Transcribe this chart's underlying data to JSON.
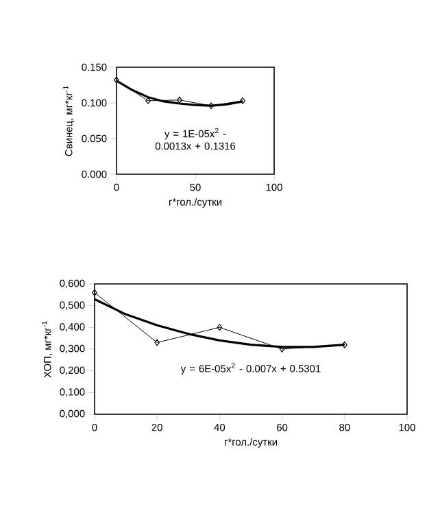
{
  "chart_data": [
    {
      "type": "line",
      "ylabel": "Свинец, мг*кг$^{-1}$",
      "xlabel": "г*гол./сутки",
      "xlim": [
        0,
        100
      ],
      "xticks": [
        0,
        50,
        100
      ],
      "ylim": [
        0,
        0.15
      ],
      "yticks": [
        {
          "value": 0,
          "label": "0.000"
        },
        {
          "value": 0.05,
          "label": "0.050"
        },
        {
          "value": 0.1,
          "label": "0.100"
        },
        {
          "value": 0.15,
          "label": "0.150"
        }
      ],
      "marker": "diamond",
      "grid": false,
      "series": [
        {
          "color": "#000000",
          "x": [
            0,
            20,
            40,
            60,
            80
          ],
          "values": [
            0.132,
            0.103,
            0.104,
            0.096,
            0.103
          ]
        },
        {
          "type": "line",
          "marker": "none",
          "color": "#000000",
          "x": [
            0,
            10,
            20,
            30,
            40,
            50,
            60,
            70,
            80
          ],
          "values": [
            0.131,
            0.118,
            0.108,
            0.102,
            0.099,
            0.097,
            0.096,
            0.098,
            0.102
          ]
        }
      ],
      "annotations": [
        "y = 1E-05x$^{2}$ - 0.0013x + 0.1316"
      ]
    },
    {
      "type": "line",
      "ylabel": "ХОП, мг*кг$^{-1}$",
      "xlabel": "г*гол./сутки",
      "xlim": [
        0,
        100
      ],
      "xticks": [
        0,
        20,
        40,
        60,
        80,
        100
      ],
      "ylim": [
        0,
        0.6
      ],
      "yticks": [
        {
          "value": 0,
          "label": "0,000"
        },
        {
          "value": 0.1,
          "label": "0,100"
        },
        {
          "value": 0.2,
          "label": "0,200"
        },
        {
          "value": 0.3,
          "label": "0,300"
        },
        {
          "value": 0.4,
          "label": "0,400"
        },
        {
          "value": 0.5,
          "label": "0,500"
        },
        {
          "value": 0.6,
          "label": "0,600"
        }
      ],
      "marker": "diamond",
      "grid": false,
      "series": [
        {
          "color": "#000000",
          "x": [
            0,
            20,
            40,
            60,
            80
          ],
          "values": [
            0.56,
            0.33,
            0.4,
            0.3,
            0.32
          ]
        },
        {
          "type": "line",
          "marker": "none",
          "color": "#000000",
          "x": [
            0,
            10,
            20,
            30,
            40,
            50,
            60,
            70,
            80
          ],
          "values": [
            0.53,
            0.46,
            0.41,
            0.37,
            0.34,
            0.32,
            0.31,
            0.31,
            0.32
          ]
        }
      ],
      "annotations": [
        "y = 6E-05x$^{2}$ - 0.007x + 0.5301"
      ]
    }
  ]
}
